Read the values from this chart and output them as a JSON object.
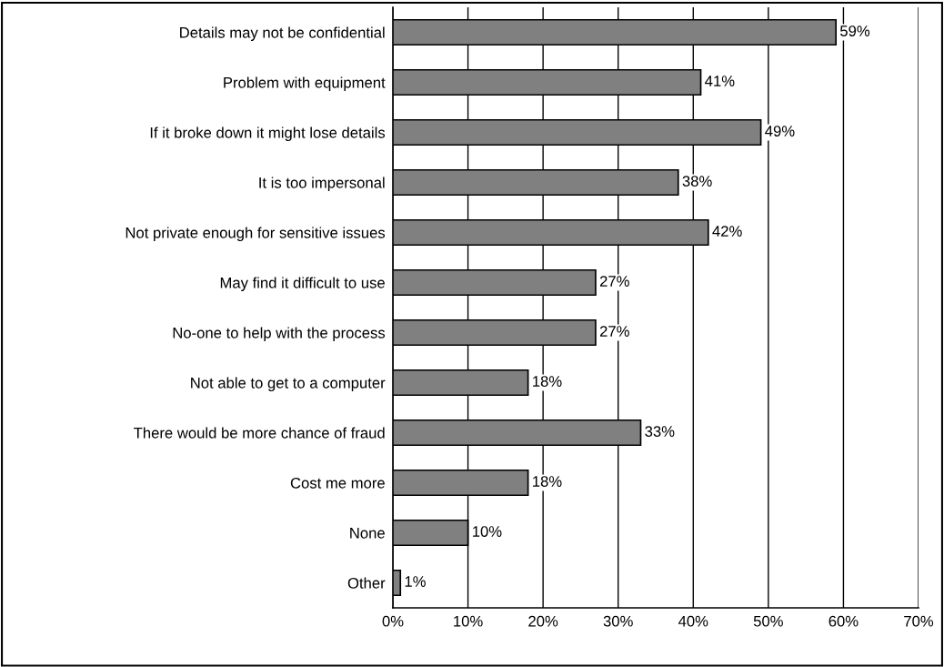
{
  "chart_data": {
    "type": "bar",
    "orientation": "horizontal",
    "categories": [
      "Details may not be confidential",
      "Problem with equipment",
      "If it broke down it might lose details",
      "It is too impersonal",
      "Not private enough for sensitive issues",
      "May find it difficult to use",
      "No-one to help with the process",
      "Not able to get to a computer",
      "There would be more chance of fraud",
      "Cost me more",
      "None",
      "Other"
    ],
    "values": [
      59,
      41,
      49,
      38,
      42,
      27,
      27,
      18,
      33,
      18,
      10,
      1
    ],
    "color": "#808080",
    "xlim": [
      0,
      70
    ],
    "xticks": [
      {
        "value": 0,
        "label": "0%"
      },
      {
        "value": 10,
        "label": "10%"
      },
      {
        "value": 20,
        "label": "20%"
      },
      {
        "value": 30,
        "label": "30%"
      },
      {
        "value": 40,
        "label": "40%"
      },
      {
        "value": 50,
        "label": "50%"
      },
      {
        "value": 60,
        "label": "60%"
      },
      {
        "value": 70,
        "label": "70%"
      }
    ],
    "value_labels": [
      "59%",
      "41%",
      "49%",
      "38%",
      "42%",
      "27%",
      "27%",
      "18%",
      "33%",
      "18%",
      "10%",
      "1%"
    ],
    "grid": "x"
  }
}
